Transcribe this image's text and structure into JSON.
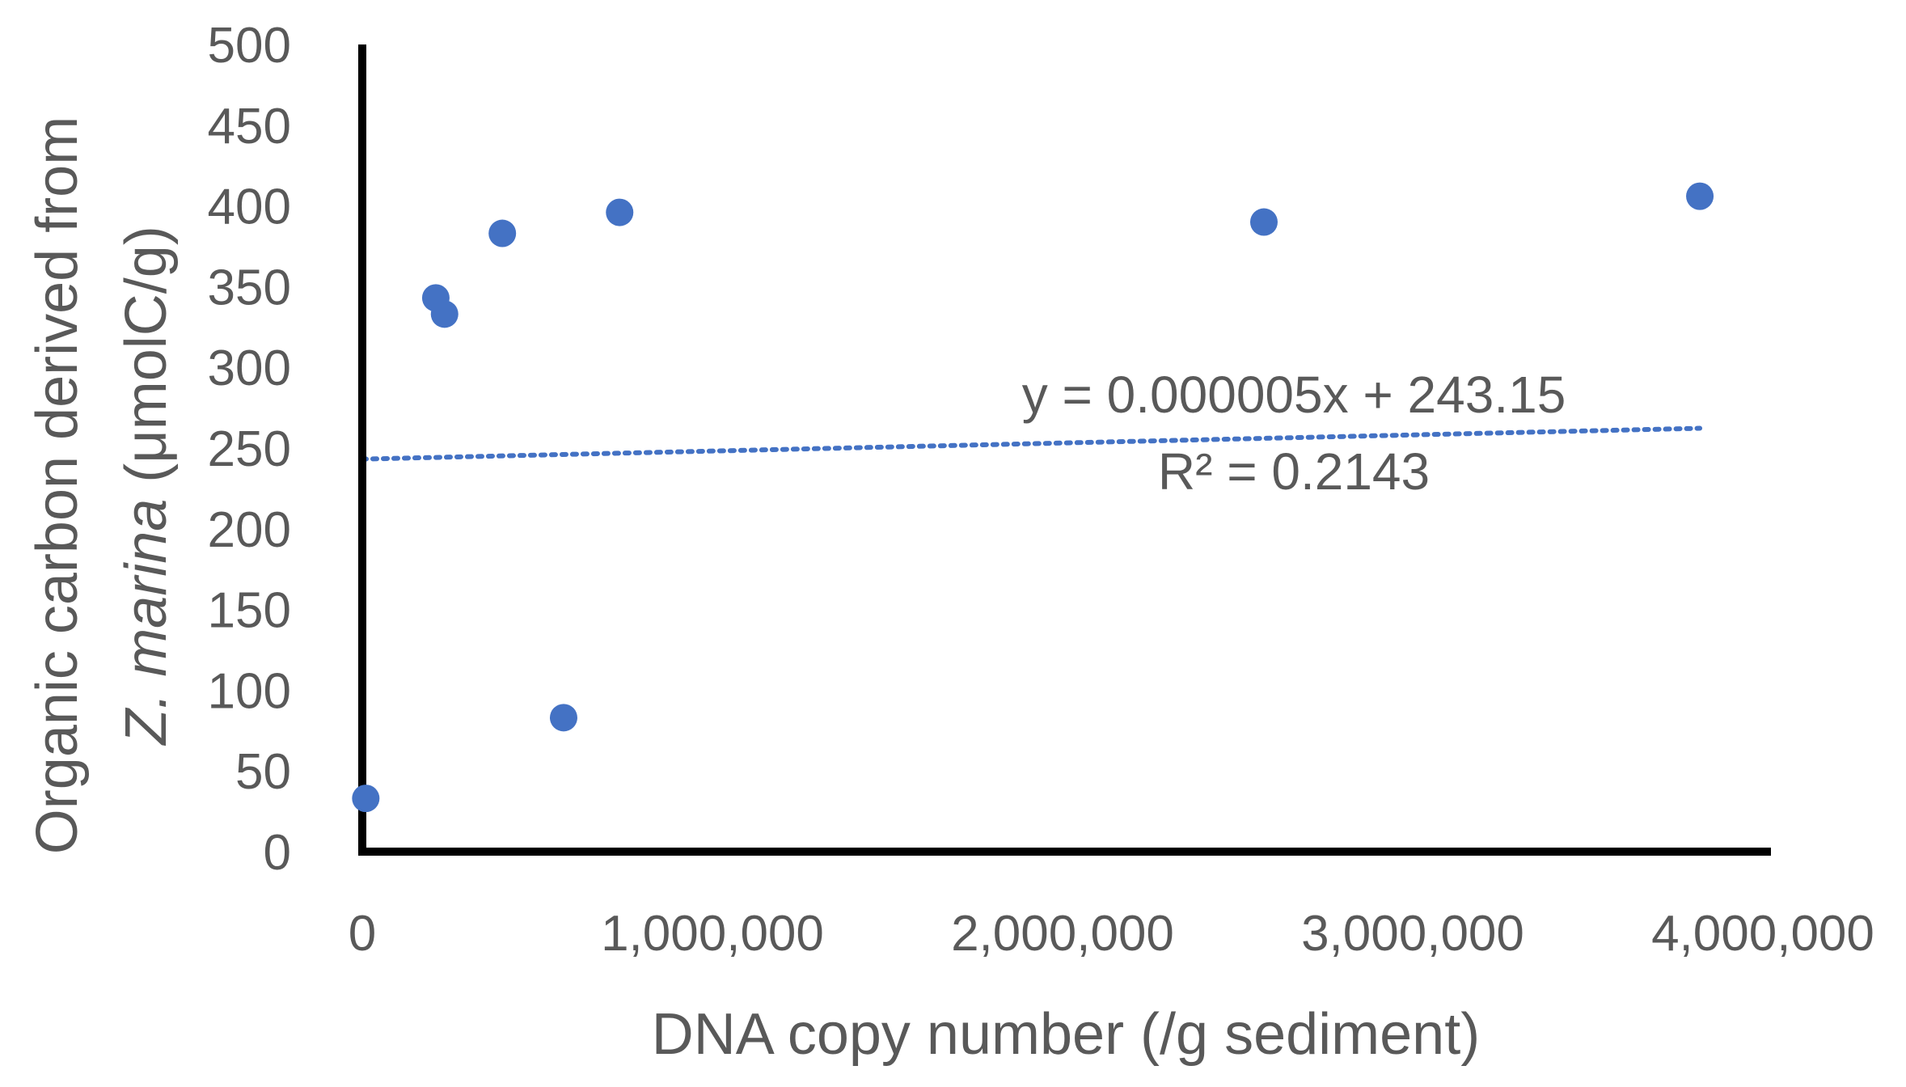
{
  "chart_data": {
    "type": "scatter",
    "title": "",
    "xlabel": "DNA copy number (/g sediment)",
    "ylabel_line1": "Organic carbon derived from",
    "ylabel_line2_italic": "Z. marina",
    "ylabel_line2_rest": " (μmolC/g)",
    "xlim": [
      0,
      4000000
    ],
    "ylim": [
      0,
      500
    ],
    "x_ticks": [
      0,
      1000000,
      2000000,
      3000000,
      4000000
    ],
    "x_tick_labels": [
      "0",
      "1,000,000",
      "2,000,000",
      "3,000,000",
      "4,000,000"
    ],
    "y_ticks": [
      0,
      50,
      100,
      150,
      200,
      250,
      300,
      350,
      400,
      450,
      500
    ],
    "y_tick_labels": [
      "0",
      "50",
      "100",
      "150",
      "200",
      "250",
      "300",
      "350",
      "400",
      "450",
      "500"
    ],
    "grid": false,
    "legend": "none",
    "colors": {
      "marker": "#4472C4",
      "trendline": "#4472C4",
      "axis": "#000000",
      "text": "#595959"
    },
    "series": [
      {
        "points": [
          {
            "x": 10000,
            "y": 33
          },
          {
            "x": 210000,
            "y": 343
          },
          {
            "x": 235000,
            "y": 333
          },
          {
            "x": 400000,
            "y": 383
          },
          {
            "x": 575000,
            "y": 83
          },
          {
            "x": 735000,
            "y": 396
          },
          {
            "x": 2575000,
            "y": 390
          },
          {
            "x": 3820000,
            "y": 406
          }
        ]
      }
    ],
    "trendline": {
      "type": "linear",
      "slope": 5e-06,
      "intercept": 243.15,
      "x_start": 0,
      "x_end": 3820000,
      "equation": "y = 0.000005x + 243.15",
      "r_squared": "R² = 0.2143"
    }
  }
}
